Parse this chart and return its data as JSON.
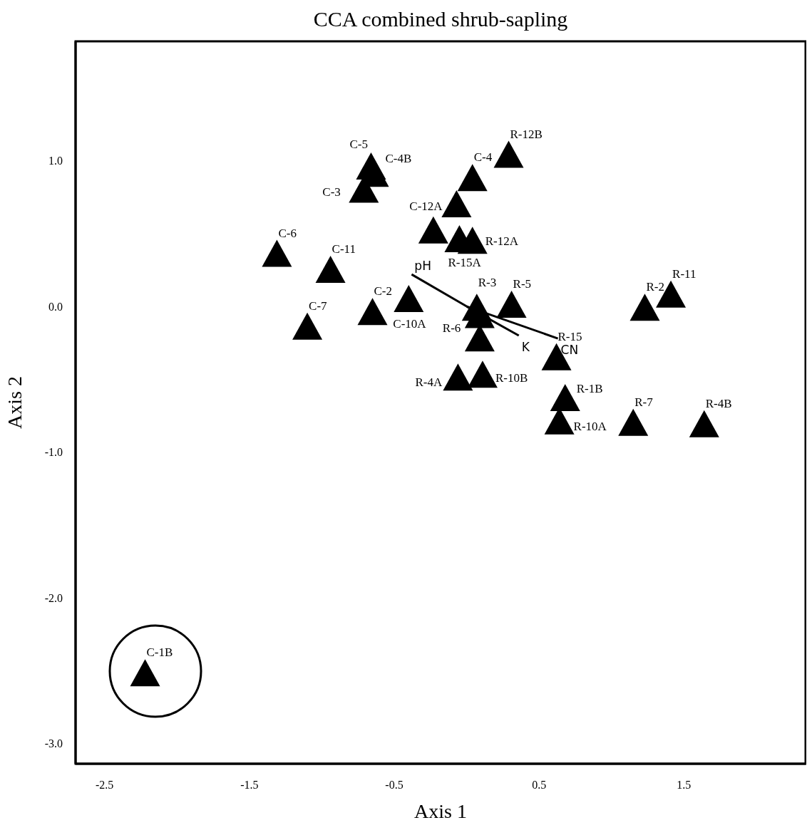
{
  "chart_data": {
    "type": "scatter",
    "title": "CCA combined shrub-sapling",
    "xlabel": "Axis 1",
    "ylabel": "Axis 2",
    "xlim": [
      -2.7,
      2.34
    ],
    "ylim": [
      -3.14,
      1.82
    ],
    "xticks": [
      -2.5,
      -1.5,
      -0.5,
      0.5,
      1.5
    ],
    "yticks": [
      {
        "value": 1,
        "label": "1.0"
      },
      {
        "value": 0,
        "label": "0.0"
      },
      {
        "value": -1,
        "label": "-1.0"
      },
      {
        "value": -2,
        "label": "-2.0"
      },
      {
        "value": -3,
        "label": "-3.0"
      }
    ],
    "grid": false,
    "legend": false,
    "marker": "triangle",
    "series": [
      {
        "type": "scatter",
        "color": "#000000",
        "value_labels": [
          "C-6",
          "C-11",
          "C-7",
          "C-2",
          "C-10A",
          "C-5",
          "C-4B",
          "C-3",
          "R-12B",
          "C-4",
          "C-12A",
          null,
          "R-15A",
          "R-12A",
          "R-3",
          "R-6",
          "R-5",
          null,
          "R-10B",
          "R-4A",
          "R-15",
          "R-1B",
          "R-10A",
          "R-2",
          "R-11",
          "R-7",
          "R-4B",
          "C-1B"
        ],
        "x": [
          -1.31,
          -0.94,
          -1.1,
          -0.65,
          -0.4,
          -0.66,
          -0.64,
          -0.71,
          0.29,
          0.04,
          -0.07,
          -0.23,
          -0.05,
          0.04,
          0.07,
          0.09,
          0.31,
          0.09,
          0.11,
          -0.06,
          0.62,
          0.68,
          0.64,
          1.23,
          1.41,
          1.15,
          1.64,
          -2.22
        ],
        "values": [
          0.34,
          0.23,
          -0.16,
          -0.06,
          0.03,
          0.94,
          0.89,
          0.78,
          1.02,
          0.86,
          0.68,
          0.5,
          0.44,
          0.43,
          -0.03,
          -0.08,
          -0.01,
          -0.24,
          -0.49,
          -0.51,
          -0.37,
          -0.65,
          -0.81,
          -0.03,
          0.06,
          -0.82,
          -0.83,
          -2.54
        ]
      },
      {
        "type": "line",
        "name": "pH",
        "color": "#000000",
        "marker": "none",
        "x": [
          0,
          -0.38
        ],
        "values": [
          0,
          0.22
        ]
      },
      {
        "type": "line",
        "name": "K",
        "color": "#000000",
        "marker": "none",
        "x": [
          0,
          0.36
        ],
        "values": [
          0,
          -0.2
        ]
      },
      {
        "type": "line",
        "name": "CN",
        "color": "#000000",
        "marker": "none",
        "x": [
          0,
          0.63
        ],
        "values": [
          0,
          -0.22
        ]
      }
    ]
  }
}
